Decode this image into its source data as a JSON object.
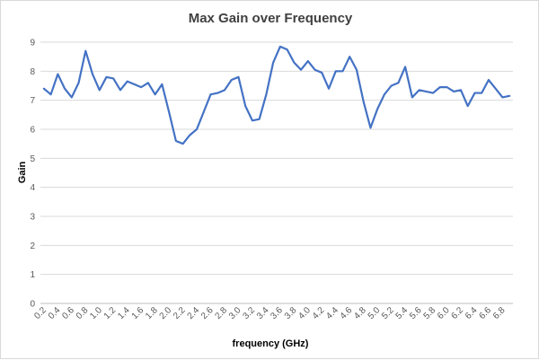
{
  "chart_data": {
    "type": "line",
    "title": "Max Gain over Frequency",
    "xlabel": "frequency  (GHz)",
    "ylabel": "Gain",
    "ylim": [
      0,
      9
    ],
    "y_ticks": [
      0,
      1,
      2,
      3,
      4,
      5,
      6,
      7,
      8,
      9
    ],
    "grid": true,
    "legend": "none",
    "x_tick_step": 2,
    "line_color": "#4472C4",
    "categories": [
      "0.2",
      "0.3",
      "0.4",
      "0.5",
      "0.6",
      "0.7",
      "0.8",
      "0.9",
      "1.0",
      "1.1",
      "1.2",
      "1.3",
      "1.4",
      "1.5",
      "1.6",
      "1.7",
      "1.8",
      "1.9",
      "2.0",
      "2.1",
      "2.2",
      "2.3",
      "2.4",
      "2.5",
      "2.6",
      "2.7",
      "2.8",
      "2.9",
      "3.0",
      "3.1",
      "3.2",
      "3.3",
      "3.4",
      "3.5",
      "3.6",
      "3.7",
      "3.8",
      "3.9",
      "4.0",
      "4.1",
      "4.2",
      "4.3",
      "4.4",
      "4.5",
      "4.6",
      "4.7",
      "4.8",
      "4.9",
      "5.0",
      "5.1",
      "5.2",
      "5.3",
      "5.4",
      "5.5",
      "5.6",
      "5.7",
      "5.8",
      "5.9",
      "6.0",
      "6.1",
      "6.2",
      "6.3",
      "6.4",
      "6.5",
      "6.6",
      "6.7",
      "6.8",
      "6.9"
    ],
    "series": [
      {
        "values": [
          7.4,
          7.2,
          7.9,
          7.4,
          7.1,
          7.6,
          8.7,
          7.9,
          7.35,
          7.8,
          7.75,
          7.35,
          7.65,
          7.55,
          7.45,
          7.6,
          7.2,
          7.55,
          6.6,
          5.6,
          5.5,
          5.8,
          6.0,
          6.6,
          7.2,
          7.25,
          7.35,
          7.7,
          7.8,
          6.8,
          6.3,
          6.35,
          7.2,
          8.3,
          8.85,
          8.75,
          8.3,
          8.05,
          8.35,
          8.05,
          7.95,
          7.4,
          8.0,
          8.0,
          8.5,
          8.05,
          6.95,
          6.05,
          6.7,
          7.2,
          7.5,
          7.6,
          8.15,
          7.1,
          7.35,
          7.3,
          7.25,
          7.45,
          7.45,
          7.3,
          7.35,
          6.8,
          7.25,
          7.25,
          7.7,
          7.4,
          7.1,
          7.15
        ]
      }
    ]
  }
}
